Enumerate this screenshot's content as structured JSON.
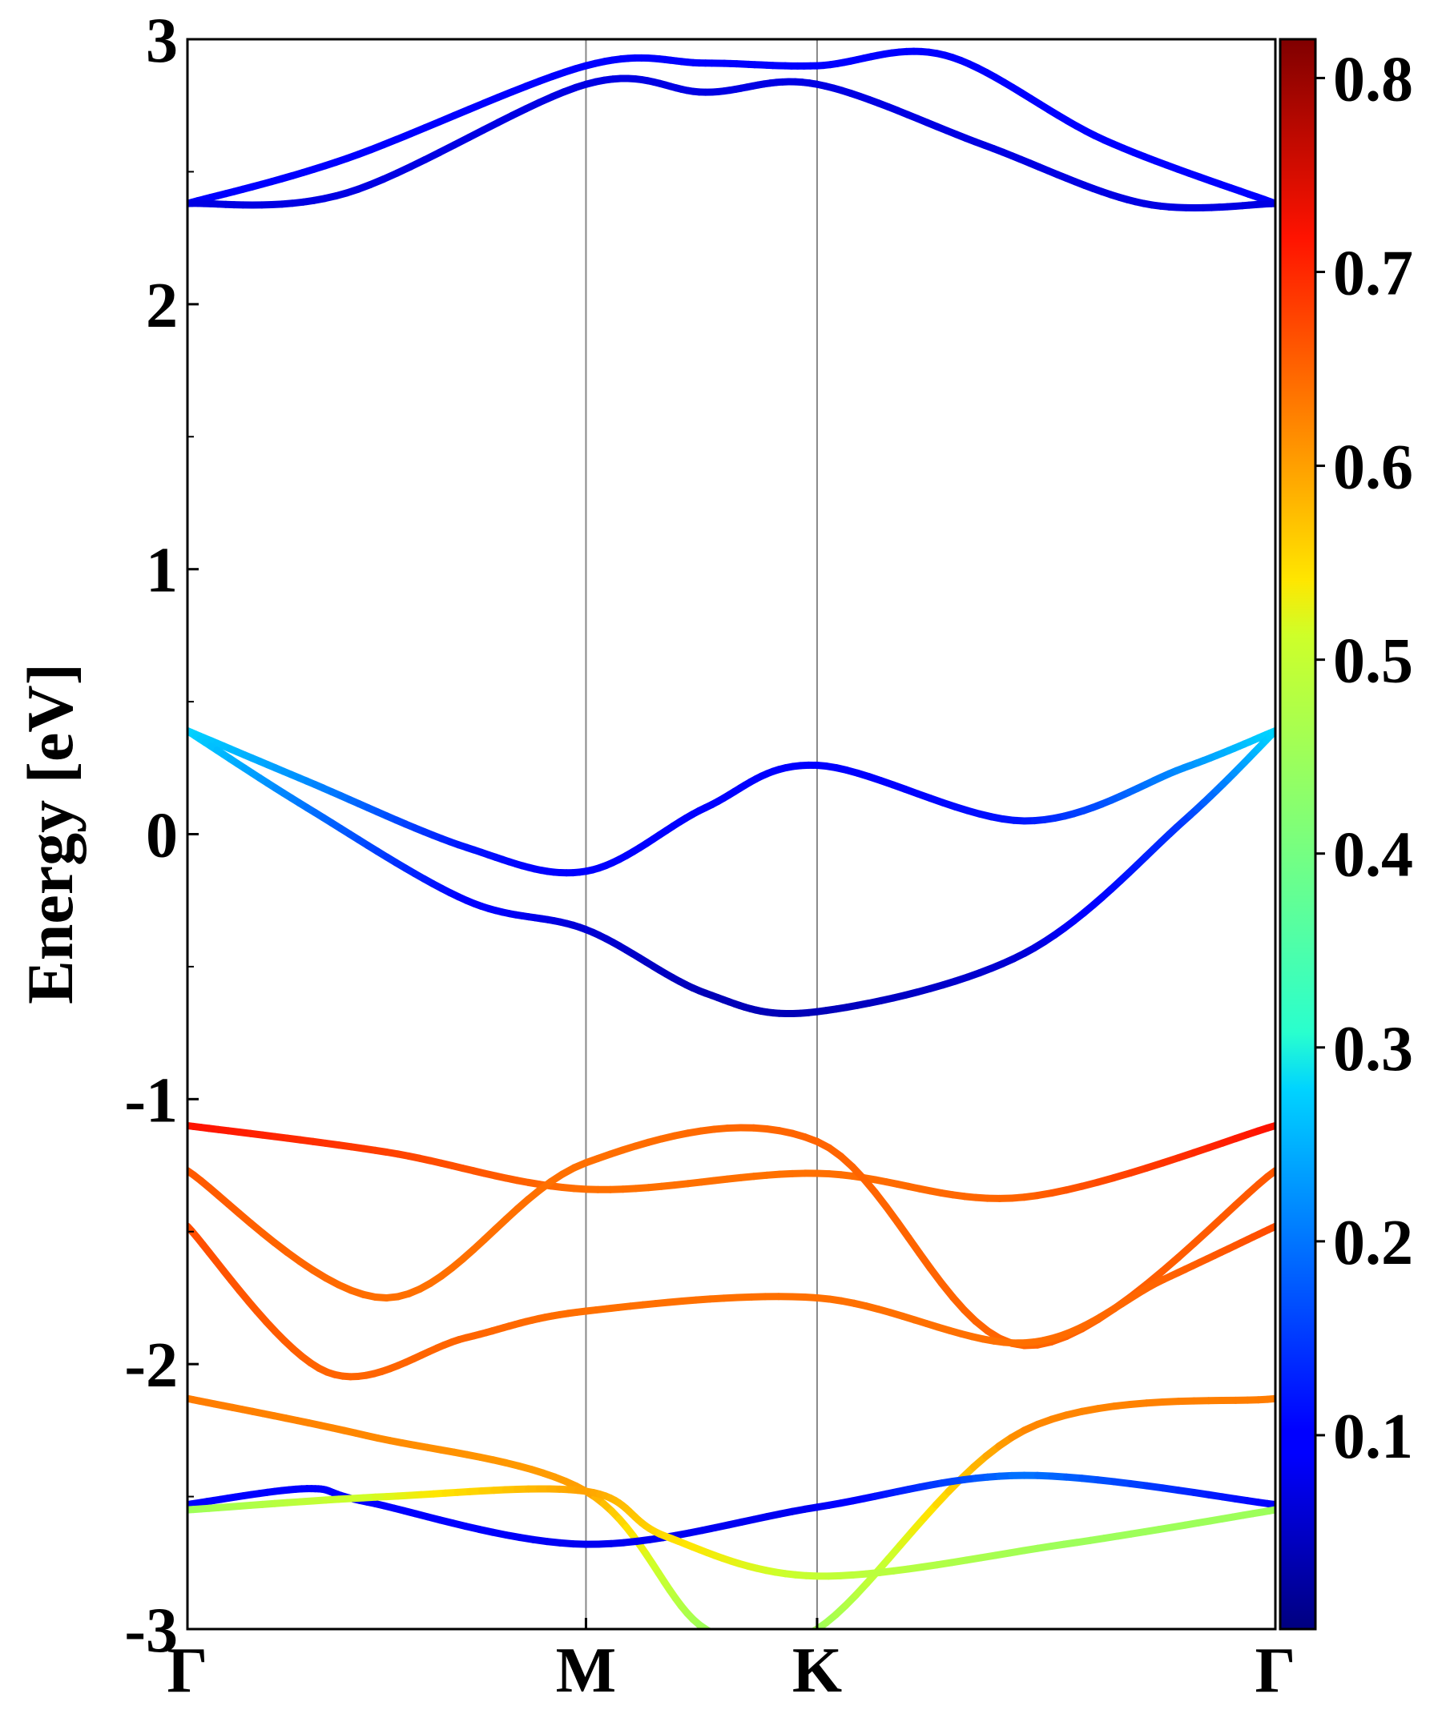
{
  "chart_data": {
    "type": "line",
    "title": "",
    "ylabel": "Energy [eV]",
    "xlabel": "",
    "ylim": [
      -3,
      3
    ],
    "yticks": [
      "3",
      "2",
      "1",
      "0",
      "-1",
      "-2",
      "-3"
    ],
    "kpath_labels": [
      "Γ",
      "M",
      "K",
      "Γ"
    ],
    "kpath_positions": [
      0,
      1,
      1.58,
      2.73
    ],
    "grid": false,
    "colorbar": {
      "range": [
        0.0,
        0.82
      ],
      "ticks": [
        "0.1",
        "0.2",
        "0.3",
        "0.4",
        "0.5",
        "0.6",
        "0.7",
        "0.8"
      ],
      "colormap": "jet"
    },
    "series": [
      {
        "x": [
          0,
          0.4,
          1,
          1.3,
          1.58,
          1.9,
          2.3,
          2.73
        ],
        "y": [
          2.38,
          2.55,
          2.9,
          2.91,
          2.9,
          2.94,
          2.62,
          2.38
        ],
        "c": [
          0.09,
          0.09,
          0.09,
          0.09,
          0.09,
          0.09,
          0.09,
          0.09
        ]
      },
      {
        "x": [
          0,
          0.4,
          1,
          1.3,
          1.58,
          2.0,
          2.4,
          2.73
        ],
        "y": [
          2.38,
          2.42,
          2.83,
          2.8,
          2.83,
          2.6,
          2.38,
          2.38
        ],
        "c": [
          0.07,
          0.07,
          0.07,
          0.07,
          0.07,
          0.07,
          0.07,
          0.07
        ]
      },
      {
        "x": [
          0,
          0.3,
          0.7,
          1,
          1.3,
          1.58,
          2.1,
          2.5,
          2.73
        ],
        "y": [
          0.39,
          0.2,
          -0.05,
          -0.14,
          0.1,
          0.26,
          0.05,
          0.25,
          0.39
        ],
        "c": [
          0.28,
          0.22,
          0.12,
          0.09,
          0.09,
          0.09,
          0.12,
          0.22,
          0.28
        ]
      },
      {
        "x": [
          0,
          0.3,
          0.7,
          1,
          1.3,
          1.58,
          2.1,
          2.5,
          2.73
        ],
        "y": [
          0.39,
          0.1,
          -0.25,
          -0.36,
          -0.6,
          -0.67,
          -0.45,
          0.05,
          0.39
        ],
        "c": [
          0.28,
          0.2,
          0.1,
          0.06,
          0.04,
          0.04,
          0.06,
          0.15,
          0.28
        ]
      },
      {
        "x": [
          0,
          0.5,
          1,
          1.58,
          2.1,
          2.73
        ],
        "y": [
          -1.1,
          -1.2,
          -1.34,
          -1.28,
          -1.37,
          -1.1
        ],
        "c": [
          0.72,
          0.68,
          0.64,
          0.64,
          0.65,
          0.72
        ]
      },
      {
        "x": [
          0,
          0.5,
          1,
          1.58,
          2.1,
          2.73
        ],
        "y": [
          -1.27,
          -1.75,
          -1.24,
          -1.16,
          -1.93,
          -1.27
        ],
        "c": [
          0.66,
          0.64,
          0.64,
          0.65,
          0.65,
          0.66
        ]
      },
      {
        "x": [
          0,
          0.35,
          0.7,
          1,
          1.58,
          2.1,
          2.45,
          2.73
        ],
        "y": [
          -1.48,
          -2.03,
          -1.9,
          -1.8,
          -1.75,
          -1.92,
          -1.68,
          -1.48
        ],
        "c": [
          0.67,
          0.65,
          0.65,
          0.64,
          0.64,
          0.64,
          0.65,
          0.67
        ]
      },
      {
        "x": [
          0,
          0.45,
          1,
          1.3,
          1.58,
          2.1,
          2.73
        ],
        "y": [
          -2.13,
          -2.27,
          -2.48,
          -3.0,
          -3.0,
          -2.25,
          -2.13
        ],
        "c": [
          0.63,
          0.62,
          0.6,
          0.45,
          0.45,
          0.62,
          0.63
        ]
      },
      {
        "x": [
          0,
          0.3,
          0.45,
          1,
          1.58,
          2.1,
          2.73
        ],
        "y": [
          -2.53,
          -2.47,
          -2.52,
          -2.68,
          -2.54,
          -2.42,
          -2.53
        ],
        "c": [
          0.1,
          0.1,
          0.1,
          0.08,
          0.08,
          0.2,
          0.1
        ]
      },
      {
        "x": [
          0,
          0.5,
          1,
          1.2,
          1.58,
          2.2,
          2.73
        ],
        "y": [
          -2.55,
          -2.5,
          -2.48,
          -2.65,
          -2.8,
          -2.68,
          -2.55
        ],
        "c": [
          0.45,
          0.52,
          0.6,
          0.55,
          0.5,
          0.45,
          0.45
        ]
      }
    ]
  }
}
